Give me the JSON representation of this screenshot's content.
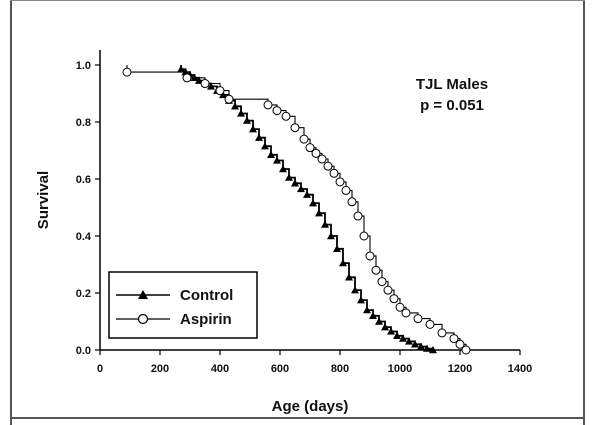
{
  "chart_data": {
    "type": "line",
    "subtype": "kaplan-meier-step",
    "title": "",
    "xlabel": "Age (days)",
    "ylabel": "Survival",
    "xlim": [
      0,
      1400
    ],
    "ylim": [
      0,
      1.0
    ],
    "xticks": [
      "0",
      "200",
      "400",
      "600",
      "800",
      "1000",
      "1200",
      "1400"
    ],
    "yticks": [
      "0.0",
      "0.2",
      "0.4",
      "0.6",
      "0.8",
      "1.0"
    ],
    "annotations": [
      "TJL Males",
      "p = 0.051"
    ],
    "grid": false,
    "legend_position": "bottom-left",
    "series": [
      {
        "name": "Control",
        "marker": "filled-triangle",
        "color": "#000000",
        "x": [
          270,
          285,
          300,
          315,
          330,
          350,
          370,
          390,
          410,
          430,
          450,
          470,
          490,
          510,
          530,
          550,
          570,
          590,
          610,
          630,
          650,
          670,
          690,
          710,
          730,
          750,
          770,
          790,
          810,
          830,
          850,
          870,
          890,
          910,
          930,
          950,
          970,
          990,
          1010,
          1030,
          1050,
          1070,
          1090,
          1110
        ],
        "y": [
          0.985,
          0.975,
          0.965,
          0.955,
          0.945,
          0.935,
          0.925,
          0.91,
          0.895,
          0.875,
          0.855,
          0.83,
          0.805,
          0.775,
          0.745,
          0.715,
          0.685,
          0.665,
          0.635,
          0.605,
          0.585,
          0.565,
          0.545,
          0.515,
          0.48,
          0.44,
          0.4,
          0.355,
          0.305,
          0.255,
          0.21,
          0.175,
          0.14,
          0.12,
          0.1,
          0.08,
          0.065,
          0.05,
          0.04,
          0.03,
          0.02,
          0.012,
          0.005,
          0.0
        ]
      },
      {
        "name": "Aspirin",
        "marker": "open-circle",
        "color": "#000000",
        "x": [
          90,
          290,
          350,
          400,
          430,
          560,
          590,
          620,
          650,
          680,
          700,
          720,
          740,
          760,
          780,
          800,
          820,
          840,
          860,
          880,
          900,
          920,
          940,
          960,
          980,
          1000,
          1020,
          1060,
          1100,
          1140,
          1180,
          1200,
          1220
        ],
        "y": [
          0.975,
          0.955,
          0.935,
          0.91,
          0.88,
          0.86,
          0.84,
          0.82,
          0.78,
          0.74,
          0.71,
          0.69,
          0.67,
          0.645,
          0.62,
          0.59,
          0.56,
          0.52,
          0.47,
          0.4,
          0.33,
          0.28,
          0.24,
          0.21,
          0.18,
          0.15,
          0.13,
          0.11,
          0.09,
          0.06,
          0.04,
          0.02,
          0.0
        ]
      }
    ]
  }
}
